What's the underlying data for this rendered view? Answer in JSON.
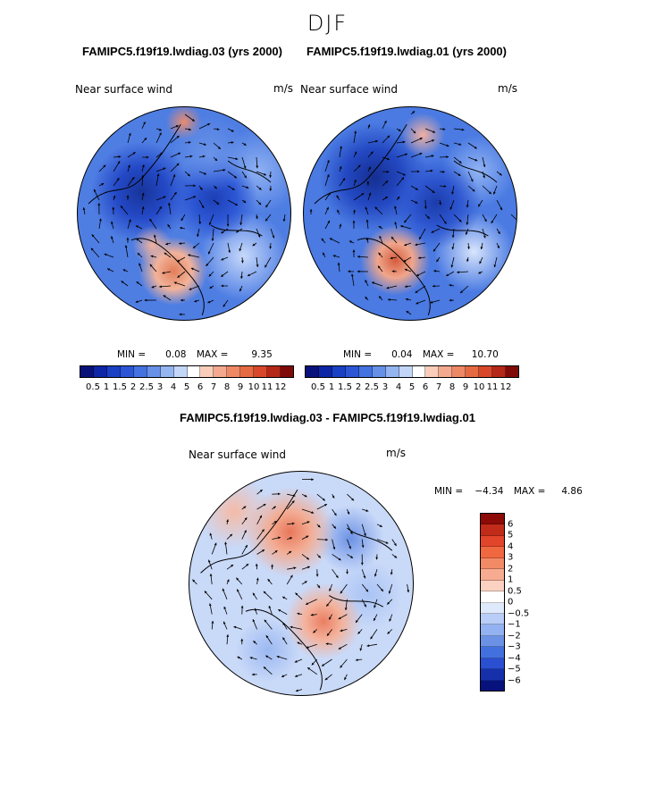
{
  "figure": {
    "season": "DJF",
    "variable": "Near surface wind",
    "units": "m/s",
    "difference_title": "FAMIPC5.f19f19.lwdiag.03 - FAMIPC5.f19f19.lwdiag.01"
  },
  "chart_data": [
    {
      "type": "heatmap",
      "projection": "north polar stereographic",
      "title": "FAMIPC5.f19f19.lwdiag.03 (yrs 2000)",
      "field": "Near surface wind",
      "units": "m/s",
      "stats": {
        "min_label": "MIN =",
        "min": "0.08",
        "max_label": "MAX =",
        "max": "9.35"
      },
      "colorbar": {
        "levels": [
          "0.5",
          "1",
          "1.5",
          "2",
          "2.5",
          "3",
          "4",
          "5",
          "6",
          "7",
          "8",
          "9",
          "10",
          "11",
          "12"
        ],
        "colors": [
          "#08127a",
          "#0d26a6",
          "#1a40c4",
          "#2c56d4",
          "#4472df",
          "#6791e6",
          "#95b5f0",
          "#c3d6f8",
          "#ffffff",
          "#f9cdb9",
          "#f4a98e",
          "#ee8865",
          "#e66a41",
          "#d8472a",
          "#b52817",
          "#7f0b08"
        ]
      }
    },
    {
      "type": "heatmap",
      "projection": "north polar stereographic",
      "title": "FAMIPC5.f19f19.lwdiag.01 (yrs 2000)",
      "field": "Near surface wind",
      "units": "m/s",
      "stats": {
        "min_label": "MIN =",
        "min": "0.04",
        "max_label": "MAX =",
        "max": "10.70"
      },
      "colorbar": {
        "levels": [
          "0.5",
          "1",
          "1.5",
          "2",
          "2.5",
          "3",
          "4",
          "5",
          "6",
          "7",
          "8",
          "9",
          "10",
          "11",
          "12"
        ],
        "colors": [
          "#08127a",
          "#0d26a6",
          "#1a40c4",
          "#2c56d4",
          "#4472df",
          "#6791e6",
          "#95b5f0",
          "#c3d6f8",
          "#ffffff",
          "#f9cdb9",
          "#f4a98e",
          "#ee8865",
          "#e66a41",
          "#d8472a",
          "#b52817",
          "#7f0b08"
        ]
      }
    },
    {
      "type": "heatmap",
      "projection": "north polar stereographic",
      "title": "FAMIPC5.f19f19.lwdiag.03 - FAMIPC5.f19f19.lwdiag.01",
      "field": "Near surface wind",
      "units": "m/s",
      "stats": {
        "min_label": "MIN =",
        "min": "−4.34",
        "max_label": "MAX =",
        "max": "4.86"
      },
      "colorbar": {
        "levels": [
          "6",
          "5",
          "4",
          "3",
          "2",
          "1",
          "0.5",
          "0",
          "−0.5",
          "−1",
          "−2",
          "−3",
          "−4",
          "−5",
          "−6"
        ],
        "colors": [
          "#8c0a07",
          "#c02c19",
          "#e2452a",
          "#f0683f",
          "#f38a66",
          "#f7ab90",
          "#fbd2c2",
          "#ffffff",
          "#dfe9fc",
          "#b8cdf7",
          "#92b2f1",
          "#6c92e6",
          "#4270de",
          "#2a4fd0",
          "#1530aa",
          "#07127d"
        ]
      }
    }
  ]
}
